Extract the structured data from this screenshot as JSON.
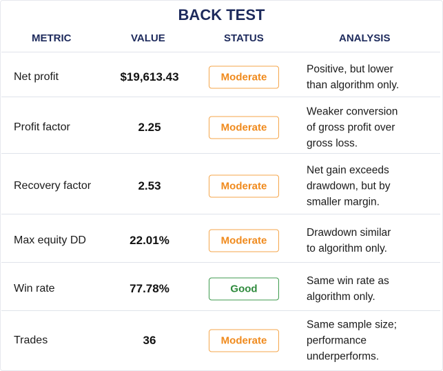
{
  "title": "BACK TEST",
  "table": {
    "header": [
      "METRIC",
      "VALUE",
      "STATUS",
      "ANALYSIS"
    ],
    "rows": [
      {
        "metric": "Net profit",
        "value": "$19,613.43",
        "status": "Moderate",
        "analysis": [
          "Positive, but lower",
          "than algorithm only."
        ]
      },
      {
        "metric": "Profit factor",
        "value": "2.25",
        "status": "Moderate",
        "analysis": [
          "Weaker conversion",
          "of gross profit over",
          "gross loss."
        ]
      },
      {
        "metric": "Recovery factor",
        "value": "2.53",
        "status": "Moderate",
        "analysis": [
          "Net gain exceeds",
          "drawdown, but by",
          "smaller margin."
        ]
      },
      {
        "metric": "Max equity DD",
        "value": "22.01%",
        "status": "Moderate",
        "analysis": [
          "Drawdown similar",
          "to algorithm only."
        ]
      },
      {
        "metric": "Win rate",
        "value": "77.78%",
        "status": "Good",
        "analysis": [
          "Same win rate as",
          "algorithm only."
        ]
      },
      {
        "metric": "Trades",
        "value": "36",
        "status": "Moderate",
        "analysis": [
          "Same sample size;",
          "performance",
          "underperforms."
        ]
      }
    ]
  }
}
